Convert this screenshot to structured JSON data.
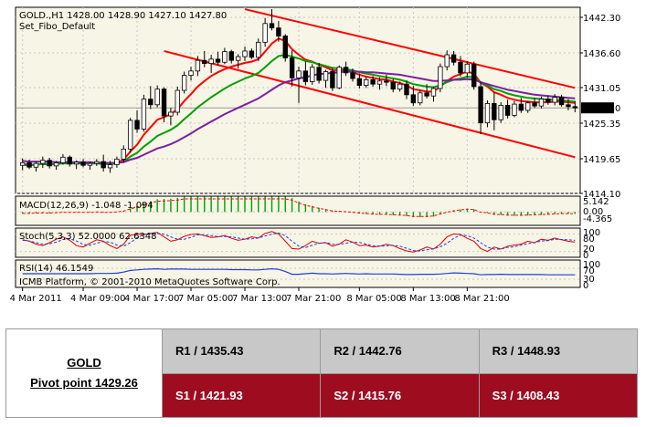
{
  "chart_header": {
    "symbol_line": "GOLD.,H1  1428.00 1428.90 1427.10 1427.80",
    "template_line": "Set_Fibo_Default"
  },
  "chart_data": [
    {
      "type": "candlestick",
      "symbol": "GOLD.",
      "timeframe": "H1",
      "ohlc_header": {
        "open": 1428.0,
        "high": 1428.9,
        "low": 1427.1,
        "close": 1427.8
      },
      "current_price_label": "1427.80",
      "ylim": [
        1414.1,
        1443.9
      ],
      "y_ticks": [
        "1442.30",
        "1436.60",
        "1431.05",
        "1425.35",
        "1419.65",
        "1414.10"
      ],
      "x_tick_labels": [
        "4 Mar 2011",
        "4 Mar 09:00",
        "4 Mar 17:00",
        "7 Mar 05:00",
        "7 Mar 13:00",
        "7 Mar 21:00",
        "8 Mar 05:00",
        "8 Mar 13:00",
        "8 Mar 21:00"
      ],
      "candles": [
        [
          1418.6,
          1419.7,
          1417.8,
          1419.0
        ],
        [
          1419.0,
          1419.5,
          1418.0,
          1418.3
        ],
        [
          1418.3,
          1419.2,
          1417.6,
          1418.9
        ],
        [
          1418.9,
          1420.0,
          1418.2,
          1419.4
        ],
        [
          1419.4,
          1419.8,
          1418.1,
          1418.5
        ],
        [
          1418.5,
          1419.3,
          1417.9,
          1419.0
        ],
        [
          1419.0,
          1420.4,
          1418.7,
          1419.9
        ],
        [
          1419.9,
          1420.2,
          1418.4,
          1418.8
        ],
        [
          1418.8,
          1419.4,
          1418.0,
          1419.1
        ],
        [
          1419.1,
          1419.6,
          1418.3,
          1418.6
        ],
        [
          1418.6,
          1419.2,
          1417.9,
          1418.9
        ],
        [
          1418.9,
          1419.6,
          1418.5,
          1419.2
        ],
        [
          1419.2,
          1420.3,
          1417.6,
          1418.2
        ],
        [
          1418.2,
          1419.3,
          1417.4,
          1418.7
        ],
        [
          1418.7,
          1420.0,
          1418.2,
          1419.6
        ],
        [
          1419.6,
          1421.8,
          1419.2,
          1421.2
        ],
        [
          1421.2,
          1426.2,
          1420.6,
          1425.8
        ],
        [
          1425.8,
          1427.4,
          1423.8,
          1424.4
        ],
        [
          1424.4,
          1429.9,
          1424.0,
          1429.2
        ],
        [
          1429.2,
          1431.3,
          1427.6,
          1428.3
        ],
        [
          1428.3,
          1431.4,
          1427.9,
          1430.8
        ],
        [
          1430.8,
          1431.1,
          1425.5,
          1426.5
        ],
        [
          1426.5,
          1427.8,
          1425.0,
          1427.1
        ],
        [
          1427.1,
          1431.2,
          1426.6,
          1430.6
        ],
        [
          1430.6,
          1433.6,
          1430.1,
          1433.0
        ],
        [
          1433.0,
          1434.4,
          1432.2,
          1433.7
        ],
        [
          1433.7,
          1436.1,
          1432.9,
          1435.4
        ],
        [
          1435.4,
          1436.9,
          1434.3,
          1434.9
        ],
        [
          1434.9,
          1436.3,
          1433.4,
          1435.6
        ],
        [
          1435.6,
          1436.8,
          1434.6,
          1435.1
        ],
        [
          1435.1,
          1437.4,
          1434.8,
          1436.8
        ],
        [
          1436.8,
          1437.1,
          1434.9,
          1435.4
        ],
        [
          1435.4,
          1436.4,
          1434.1,
          1436.0
        ],
        [
          1436.0,
          1437.6,
          1435.3,
          1436.9
        ],
        [
          1436.9,
          1437.3,
          1435.6,
          1435.9
        ],
        [
          1435.9,
          1438.9,
          1435.3,
          1438.3
        ],
        [
          1438.3,
          1442.2,
          1437.6,
          1441.3
        ],
        [
          1441.3,
          1443.6,
          1440.2,
          1440.6
        ],
        [
          1440.6,
          1441.7,
          1438.4,
          1439.3
        ],
        [
          1439.3,
          1439.6,
          1435.2,
          1435.8
        ],
        [
          1435.8,
          1437.0,
          1431.2,
          1432.6
        ],
        [
          1432.6,
          1434.4,
          1428.6,
          1433.7
        ],
        [
          1433.7,
          1435.2,
          1431.4,
          1432.0
        ],
        [
          1432.0,
          1434.8,
          1431.5,
          1434.3
        ],
        [
          1434.3,
          1435.0,
          1431.7,
          1432.2
        ],
        [
          1432.2,
          1433.9,
          1431.0,
          1433.6
        ],
        [
          1433.6,
          1434.2,
          1430.5,
          1431.0
        ],
        [
          1431.0,
          1434.6,
          1430.8,
          1434.3
        ],
        [
          1434.3,
          1435.2,
          1432.9,
          1433.4
        ],
        [
          1433.4,
          1434.1,
          1432.0,
          1432.5
        ],
        [
          1432.5,
          1433.3,
          1430.9,
          1431.4
        ],
        [
          1431.4,
          1432.8,
          1431.0,
          1432.3
        ],
        [
          1432.3,
          1432.9,
          1431.2,
          1431.6
        ],
        [
          1431.6,
          1432.7,
          1430.7,
          1432.1
        ],
        [
          1432.1,
          1433.1,
          1431.3,
          1431.9
        ],
        [
          1431.9,
          1432.4,
          1430.3,
          1430.8
        ],
        [
          1430.8,
          1432.0,
          1430.4,
          1431.6
        ],
        [
          1431.6,
          1432.2,
          1429.2,
          1429.9
        ],
        [
          1429.9,
          1431.3,
          1428.1,
          1428.6
        ],
        [
          1428.6,
          1430.7,
          1428.2,
          1430.2
        ],
        [
          1430.2,
          1431.6,
          1429.3,
          1429.7
        ],
        [
          1429.7,
          1431.2,
          1428.8,
          1430.9
        ],
        [
          1430.9,
          1434.9,
          1430.3,
          1434.4
        ],
        [
          1434.4,
          1437.0,
          1433.8,
          1436.3
        ],
        [
          1436.3,
          1436.9,
          1434.6,
          1435.1
        ],
        [
          1435.1,
          1436.1,
          1432.8,
          1433.4
        ],
        [
          1433.4,
          1435.3,
          1432.6,
          1434.8
        ],
        [
          1434.8,
          1435.2,
          1430.7,
          1431.2
        ],
        [
          1431.2,
          1432.0,
          1423.6,
          1425.4
        ],
        [
          1425.4,
          1429.0,
          1424.7,
          1428.5
        ],
        [
          1428.5,
          1430.3,
          1424.2,
          1425.9
        ],
        [
          1425.9,
          1428.7,
          1425.4,
          1428.2
        ],
        [
          1428.2,
          1429.1,
          1426.1,
          1426.6
        ],
        [
          1426.6,
          1428.9,
          1426.3,
          1428.4
        ],
        [
          1428.4,
          1429.4,
          1427.0,
          1427.4
        ],
        [
          1427.4,
          1428.9,
          1427.0,
          1428.6
        ],
        [
          1428.6,
          1429.4,
          1427.8,
          1428.1
        ],
        [
          1428.1,
          1429.6,
          1427.7,
          1429.2
        ],
        [
          1429.2,
          1429.8,
          1428.3,
          1428.7
        ],
        [
          1428.7,
          1430.0,
          1428.2,
          1429.5
        ],
        [
          1429.5,
          1429.9,
          1428.0,
          1428.3
        ],
        [
          1428.3,
          1429.2,
          1427.4,
          1428.0
        ],
        [
          1428.0,
          1428.9,
          1427.1,
          1427.8
        ]
      ],
      "moving_averages": [
        {
          "color": "#ff0000",
          "values": [
            1418.7,
            1418.6,
            1418.7,
            1418.8,
            1418.7,
            1418.8,
            1419.0,
            1418.9,
            1419.0,
            1418.9,
            1418.9,
            1419.0,
            1418.8,
            1418.8,
            1419.0,
            1419.5,
            1420.8,
            1421.9,
            1423.5,
            1424.7,
            1425.9,
            1426.3,
            1426.8,
            1427.6,
            1428.9,
            1430.0,
            1431.2,
            1432.1,
            1432.9,
            1433.5,
            1434.0,
            1434.4,
            1434.7,
            1435.0,
            1435.2,
            1435.6,
            1436.8,
            1438.1,
            1438.9,
            1438.5,
            1437.2,
            1436.3,
            1435.5,
            1435.2,
            1434.7,
            1434.3,
            1433.8,
            1433.8,
            1433.7,
            1433.5,
            1433.1,
            1432.8,
            1432.6,
            1432.4,
            1432.3,
            1432.0,
            1431.8,
            1431.4,
            1430.8,
            1430.6,
            1430.4,
            1430.4,
            1431.2,
            1432.1,
            1432.8,
            1433.2,
            1433.6,
            1433.3,
            1431.8,
            1431.2,
            1430.3,
            1429.9,
            1429.4,
            1429.1,
            1428.9,
            1428.8,
            1428.7,
            1428.7,
            1428.7,
            1428.8,
            1428.8,
            1428.7,
            1428.6
          ]
        },
        {
          "color": "#00a000",
          "values": [
            1418.8,
            1418.7,
            1418.7,
            1418.8,
            1418.8,
            1418.8,
            1418.9,
            1418.9,
            1418.9,
            1418.9,
            1418.9,
            1418.9,
            1418.8,
            1418.8,
            1418.9,
            1419.2,
            1420.0,
            1420.6,
            1421.6,
            1422.4,
            1423.3,
            1423.8,
            1424.3,
            1425.0,
            1426.0,
            1426.9,
            1427.9,
            1428.7,
            1429.5,
            1430.2,
            1430.9,
            1431.5,
            1432.0,
            1432.5,
            1432.9,
            1433.4,
            1434.3,
            1435.3,
            1436.1,
            1436.3,
            1436.0,
            1435.7,
            1435.3,
            1435.1,
            1434.8,
            1434.5,
            1434.2,
            1434.1,
            1434.0,
            1433.8,
            1433.5,
            1433.3,
            1433.1,
            1432.9,
            1432.7,
            1432.5,
            1432.3,
            1432.0,
            1431.6,
            1431.4,
            1431.2,
            1431.1,
            1431.4,
            1431.9,
            1432.3,
            1432.5,
            1432.8,
            1432.7,
            1431.8,
            1431.4,
            1430.8,
            1430.5,
            1430.1,
            1429.8,
            1429.6,
            1429.4,
            1429.3,
            1429.2,
            1429.1,
            1429.1,
            1429.0,
            1428.9,
            1428.8
          ]
        },
        {
          "color": "#7b1fa2",
          "values": [
            1419.3,
            1419.2,
            1419.2,
            1419.2,
            1419.2,
            1419.1,
            1419.1,
            1419.1,
            1419.1,
            1419.1,
            1419.1,
            1419.0,
            1419.0,
            1419.0,
            1419.0,
            1419.1,
            1419.5,
            1419.8,
            1420.3,
            1420.8,
            1421.3,
            1421.6,
            1422.0,
            1422.5,
            1423.1,
            1423.7,
            1424.4,
            1425.0,
            1425.6,
            1426.2,
            1426.8,
            1427.3,
            1427.8,
            1428.3,
            1428.8,
            1429.3,
            1430.0,
            1430.7,
            1431.4,
            1431.9,
            1432.2,
            1432.5,
            1432.7,
            1433.0,
            1433.2,
            1433.3,
            1433.4,
            1433.5,
            1433.6,
            1433.6,
            1433.6,
            1433.5,
            1433.5,
            1433.4,
            1433.3,
            1433.2,
            1433.1,
            1432.9,
            1432.7,
            1432.5,
            1432.3,
            1432.1,
            1432.1,
            1432.2,
            1432.3,
            1432.3,
            1432.4,
            1432.3,
            1431.9,
            1431.6,
            1431.3,
            1431.0,
            1430.7,
            1430.5,
            1430.3,
            1430.1,
            1429.9,
            1429.8,
            1429.7,
            1429.6,
            1429.5,
            1429.4,
            1429.3
          ]
        }
      ],
      "trend_channel": {
        "color": "#ff0000",
        "upper": {
          "from_bar": 33,
          "from_price": 1443.6,
          "to_bar": 82,
          "to_price": 1431.0
        },
        "lower": {
          "from_bar": 21,
          "from_price": 1436.9,
          "to_bar": 82,
          "to_price": 1419.9
        }
      }
    },
    {
      "type": "histogram",
      "indicator": "MACD",
      "label": "MACD(12,26,9) -1.048 -1.094",
      "y_ticks": [
        "5.142",
        "0.00",
        "-4.365"
      ],
      "ylim": [
        -4.365,
        5.142
      ],
      "bar_color": "#00a000",
      "signal_color": "#ff0000"
    },
    {
      "type": "line",
      "indicator": "Stochastic",
      "label": "Stoch(5,3,3) 52.0000 62.6348",
      "y_ticks": [
        "100",
        "80",
        "20",
        "0"
      ],
      "ylim": [
        0,
        100
      ],
      "main": [
        60,
        55,
        45,
        40,
        50,
        62,
        70,
        58,
        40,
        35,
        48,
        60,
        55,
        40,
        30,
        45,
        75,
        80,
        78,
        82,
        85,
        70,
        55,
        60,
        72,
        78,
        80,
        74,
        68,
        70,
        75,
        65,
        58,
        62,
        70,
        66,
        82,
        88,
        80,
        55,
        30,
        28,
        40,
        55,
        48,
        50,
        38,
        45,
        60,
        52,
        40,
        42,
        35,
        38,
        45,
        40,
        30,
        22,
        18,
        25,
        35,
        28,
        45,
        70,
        80,
        78,
        65,
        55,
        30,
        20,
        35,
        28,
        38,
        42,
        45,
        55,
        50,
        62,
        58,
        66,
        60,
        55,
        52
      ],
      "signal": [
        58,
        56,
        50,
        45,
        46,
        52,
        61,
        63,
        56,
        44,
        41,
        48,
        54,
        52,
        42,
        38,
        50,
        67,
        78,
        80,
        82,
        79,
        70,
        62,
        62,
        68,
        77,
        77,
        74,
        71,
        71,
        70,
        66,
        62,
        63,
        66,
        73,
        79,
        83,
        74,
        55,
        38,
        33,
        41,
        48,
        51,
        45,
        44,
        48,
        52,
        51,
        45,
        39,
        38,
        39,
        41,
        38,
        31,
        23,
        22,
        26,
        29,
        36,
        48,
        65,
        76,
        74,
        66,
        50,
        35,
        28,
        28,
        34,
        36,
        42,
        47,
        50,
        56,
        57,
        62,
        61,
        60,
        58
      ]
    },
    {
      "type": "line",
      "indicator": "RSI",
      "label": "RSI(14) 46.1549",
      "y_ticks": [
        "100",
        "70",
        "30",
        "0"
      ],
      "ylim": [
        0,
        100
      ],
      "color": "#1f3fd8",
      "values": [
        50,
        50,
        50,
        50,
        50,
        50,
        50,
        50,
        50,
        50,
        50,
        51,
        51,
        51,
        52,
        56,
        62,
        64,
        66,
        67,
        68,
        66,
        67,
        67,
        67,
        66,
        66,
        66,
        66,
        66,
        66,
        65,
        65,
        65,
        64,
        64,
        66,
        68,
        66,
        58,
        48,
        48,
        50,
        52,
        50,
        50,
        49,
        50,
        51,
        50,
        49,
        50,
        49,
        49,
        49,
        49,
        48,
        47,
        47,
        48,
        48,
        48,
        49,
        51,
        53,
        52,
        51,
        50,
        46,
        47,
        47,
        48,
        47,
        47,
        47,
        47,
        47,
        47,
        46,
        46,
        46,
        46,
        46
      ]
    }
  ],
  "copyright": "ICMB Platform, © 2001-2010 MetaQuotes Software Corp.",
  "pivot_table": {
    "instrument": "GOLD",
    "pivot": "Pivot point 1429.26",
    "resistance": [
      "R1 / 1435.43",
      "R2 / 1442.76",
      "R3 / 1448.93"
    ],
    "support": [
      "S1 / 1421.93",
      "S2 / 1415.76",
      "S3 / 1408.43"
    ]
  },
  "colors": {
    "chart_bg": "#f7f5e6",
    "grid": "#c8c8c8",
    "support_row": "#9e0c20",
    "resistance_row": "#c8c8c8"
  }
}
